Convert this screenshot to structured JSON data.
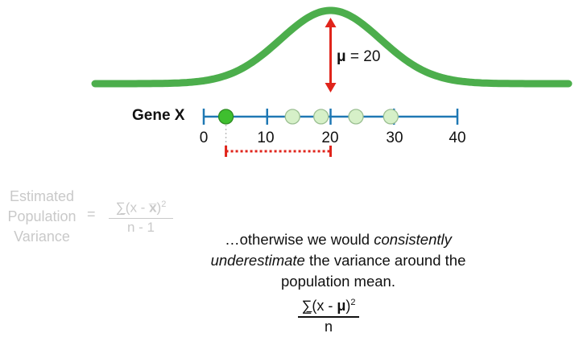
{
  "gene_label": "Gene X",
  "axis_ticks": [
    {
      "label": "0",
      "value": 0
    },
    {
      "label": "10",
      "value": 10
    },
    {
      "label": "20",
      "value": 20
    },
    {
      "label": "30",
      "value": 30
    },
    {
      "label": "40",
      "value": 40
    }
  ],
  "mu_annotation": {
    "symbol": "μ",
    "text": " = 20",
    "value": 20
  },
  "data_points": [
    {
      "value": 3.5,
      "highlighted": true
    },
    {
      "value": 14,
      "highlighted": false
    },
    {
      "value": 18.5,
      "highlighted": false
    },
    {
      "value": 24,
      "highlighted": false
    },
    {
      "value": 29.5,
      "highlighted": false
    }
  ],
  "colors": {
    "curve": "#4cae4c",
    "axis": "#1f78b4",
    "arrow": "#e0241b",
    "highlight_point": "#3fbf2f",
    "faded_point": "#d6f0c8",
    "gray_text": "#c9c9c9"
  },
  "estimated_formula": {
    "label_lines": [
      "Estimated",
      "Population",
      "Variance"
    ],
    "equals": "=",
    "numerator_sigma": "∑",
    "numerator_x": "(x - ",
    "numerator_xbar": "x̅",
    "numerator_close": ")",
    "numerator_exp": "2",
    "denominator": "n - 1"
  },
  "message": {
    "part1": "…otherwise we would ",
    "italic1": "consistently",
    "italic2": "underestimate",
    "part2": " the variance around the population mean."
  },
  "population_formula": {
    "numerator_sigma": "∑",
    "numerator_x": "(x - ",
    "numerator_mu": "μ",
    "numerator_close": ")",
    "numerator_exp": "2",
    "denominator": "n"
  }
}
